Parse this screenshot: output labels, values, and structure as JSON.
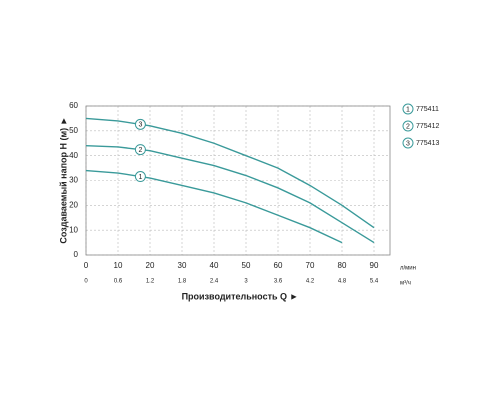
{
  "chart_data": {
    "type": "line",
    "x_label": "Производительность Q ►",
    "y_label": "Создаваемый напор H (м) ►",
    "x_unit": "л/мин",
    "x2_unit": "м³/ч",
    "x": [
      0,
      10,
      20,
      30,
      40,
      50,
      60,
      70,
      80,
      90
    ],
    "series": [
      {
        "name": "775411",
        "label": "1",
        "color": "#3a9a9a",
        "values": [
          34,
          33,
          31,
          28,
          25,
          21,
          16,
          11,
          5,
          null
        ]
      },
      {
        "name": "775412",
        "label": "2",
        "color": "#3a9a9a",
        "values": [
          44,
          43.5,
          42,
          39,
          36,
          32,
          27,
          21,
          13,
          5
        ]
      },
      {
        "name": "775413",
        "label": "3",
        "color": "#3a9a9a",
        "values": [
          55,
          54,
          52,
          49,
          45,
          40,
          35,
          28,
          20,
          11
        ]
      }
    ],
    "xlim": [
      0,
      95
    ],
    "xticks": [
      0,
      10,
      20,
      30,
      40,
      50,
      60,
      70,
      80,
      90
    ],
    "x2lim": [
      0,
      5.7
    ],
    "x2ticks": [
      0,
      0.6,
      1.2,
      1.8,
      2.4,
      3.0,
      3.6,
      4.2,
      4.8,
      5.4
    ],
    "ylim": [
      0,
      60
    ],
    "yticks": [
      0,
      10,
      20,
      30,
      40,
      50,
      60
    ],
    "grid": true,
    "legend": "right"
  }
}
